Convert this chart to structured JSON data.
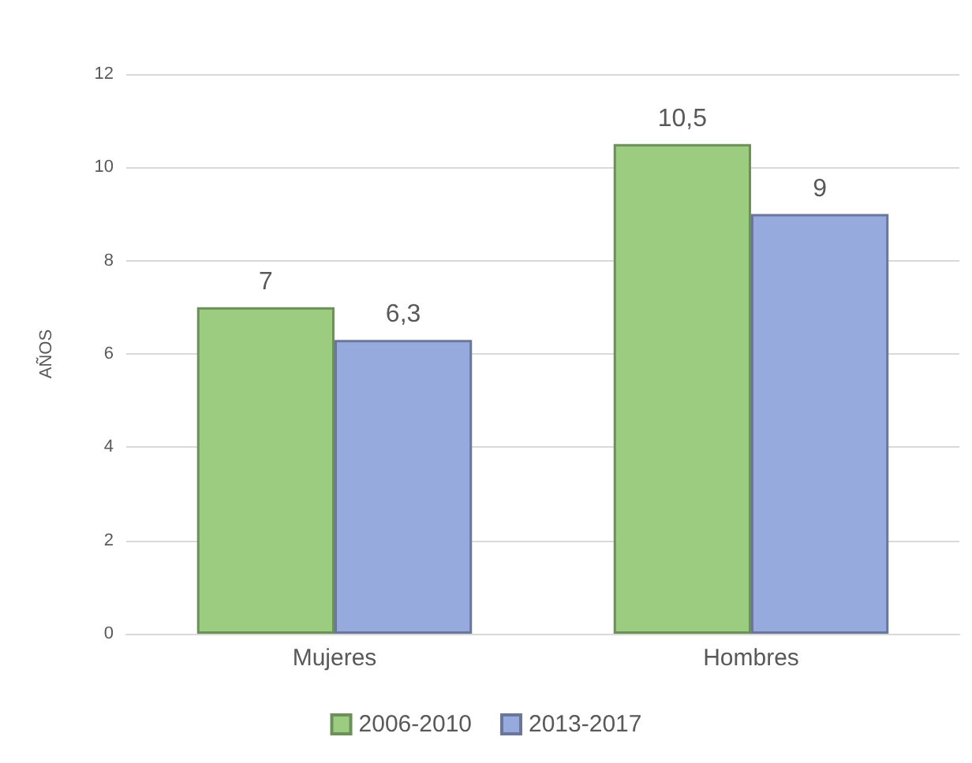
{
  "chart_data": {
    "type": "bar",
    "ylabel": "AÑOS",
    "categories": [
      "Mujeres",
      "Hombres"
    ],
    "series": [
      {
        "name": "2006-2010",
        "color": "#9ccc7f",
        "values": [
          7,
          10.5
        ],
        "value_labels": [
          "7",
          "10,5"
        ]
      },
      {
        "name": "2013-2017",
        "color": "#97aadd",
        "values": [
          6.3,
          9
        ],
        "value_labels": [
          "6,3",
          "9"
        ]
      }
    ],
    "ylim": [
      0,
      12
    ],
    "yticks": [
      0,
      2,
      4,
      6,
      8,
      10,
      12
    ],
    "grid": "y",
    "legend": "bottom"
  }
}
